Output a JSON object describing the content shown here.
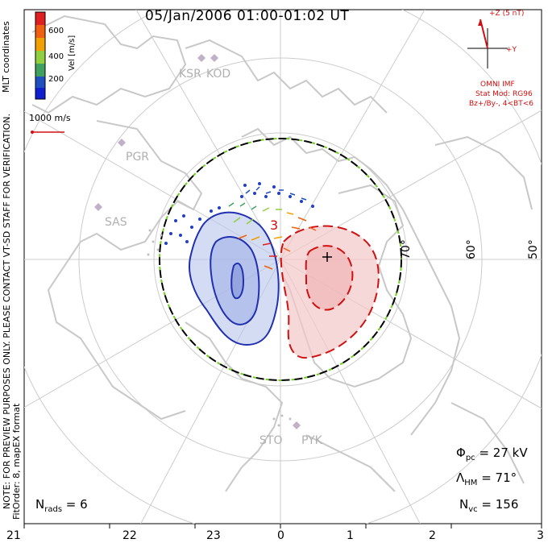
{
  "title": "05/Jan/2006 01:00-01:02 UT",
  "colorbar": {
    "label": "Vel [m/s]",
    "ticks": [
      "600",
      "400",
      "200"
    ],
    "colors": [
      "#e02020",
      "#f06010",
      "#f0a000",
      "#90d040",
      "#40a060",
      "#2050c0",
      "#1020d0"
    ]
  },
  "coord_system": "MLT coordinates",
  "vector_scale": "1000 m/s",
  "imf": {
    "plus_z": "+Z (5 nT)",
    "plus_y": "+Y",
    "source": "OMNI IMF",
    "stat_mod": "Stat Mod: RG96",
    "condition": "Bz+/By-, 4<BT<6"
  },
  "stations": [
    "KSR",
    "KOD",
    "PGR",
    "SAS",
    "STO",
    "PYK"
  ],
  "lat_labels": [
    "70°",
    "60°",
    "50°"
  ],
  "potential_label": "3",
  "side_note": "NOTE: FOR PREVIEW PURPOSES ONLY. PLEASE CONTACT VT-SD STAFF FOR VERIFICATION.",
  "fit_order": "FitOrder: 8, mapEX format",
  "stats": {
    "phi_pc": "Φ",
    "phi_pc_sub": "pc",
    "phi_pc_value": " = 27 kV",
    "lambda_hm": "Λ",
    "lambda_hm_sub": "HM",
    "lambda_hm_value": " = 71°",
    "n_vc": "N",
    "n_vc_sub": "vc",
    "n_vc_value": " = 156",
    "n_rads": "N",
    "n_rads_sub": "rads",
    "n_rads_value": " = 6"
  },
  "mlt_ticks": [
    "21",
    "22",
    "23",
    "0",
    "1",
    "2",
    "3"
  ],
  "colors": {
    "dusk_cell": "#2030b0",
    "dawn_cell": "#d01010",
    "hmb_green": "#70d020",
    "land": "#c8c8c8",
    "grid": "#cccccc",
    "annotation_red": "#d01010"
  }
}
